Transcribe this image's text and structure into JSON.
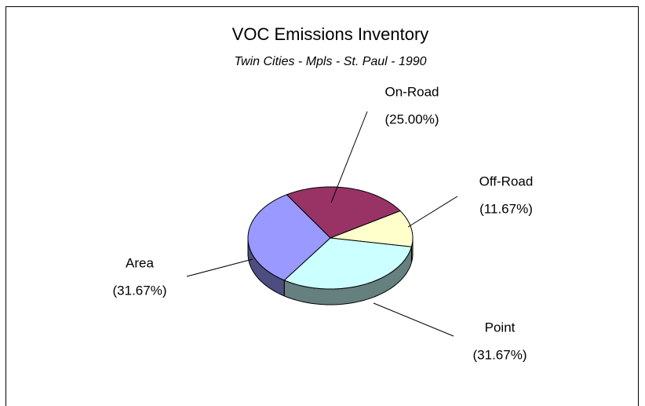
{
  "chart_data": {
    "type": "pie3d",
    "title": "VOC Emissions Inventory",
    "subtitle": "Twin Cities - Mpls - St. Paul - 1990",
    "categories": [
      "On-Road",
      "Off-Road",
      "Point",
      "Area"
    ],
    "values": [
      25.0,
      11.67,
      31.67,
      31.67
    ],
    "value_labels": [
      "(25.00%)",
      "(11.67%)",
      "(31.67%)",
      "(31.67%)"
    ],
    "colors": [
      "#993366",
      "#ffffcc",
      "#ccffff",
      "#9999ff"
    ]
  }
}
